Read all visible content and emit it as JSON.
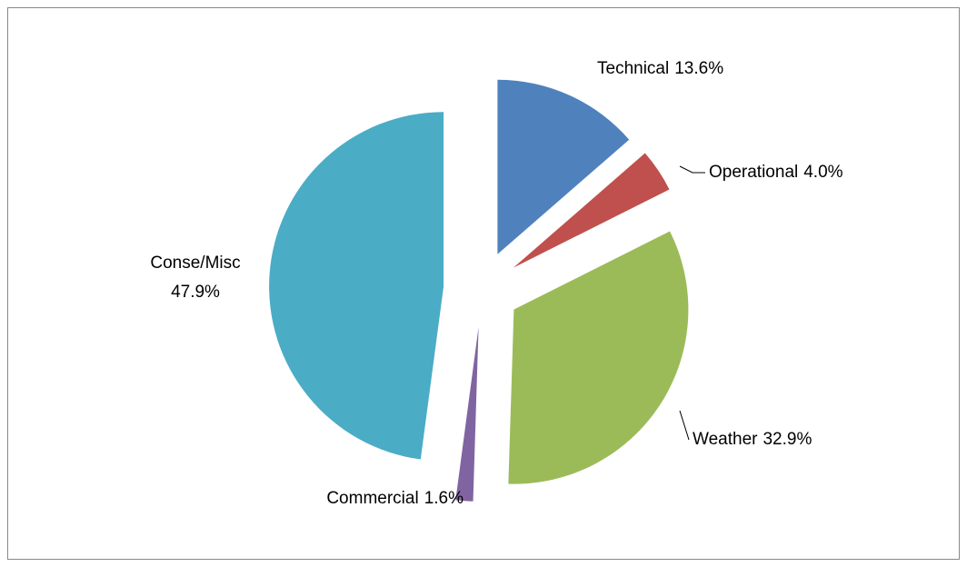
{
  "chart_data": {
    "type": "pie",
    "categories": [
      "Technical",
      "Operational",
      "Weather",
      "Commercial",
      "Conse/Misc"
    ],
    "values": [
      13.6,
      4.0,
      32.9,
      1.6,
      47.9
    ],
    "value_labels": [
      "13.6%",
      "4.0%",
      "32.9%",
      "1.6%",
      "47.9%"
    ],
    "colors": [
      "#4f81bd",
      "#c0504d",
      "#9bbb59",
      "#8064a2",
      "#4bacc6"
    ]
  }
}
